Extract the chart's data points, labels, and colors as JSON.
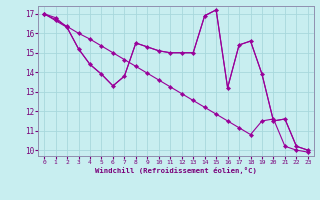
{
  "xlabel": "Windchill (Refroidissement éolien,°C)",
  "bg_color": "#c8eef0",
  "grid_color": "#a8d8dc",
  "line_color": "#990099",
  "xlim": [
    -0.5,
    23.5
  ],
  "ylim": [
    9.7,
    17.4
  ],
  "yticks": [
    10,
    11,
    12,
    13,
    14,
    15,
    16,
    17
  ],
  "xticks": [
    0,
    1,
    2,
    3,
    4,
    5,
    6,
    7,
    8,
    9,
    10,
    11,
    12,
    13,
    14,
    15,
    16,
    17,
    18,
    19,
    20,
    21,
    22,
    23
  ],
  "line1_x": [
    0,
    1,
    2,
    3,
    4,
    5,
    6,
    7,
    8,
    9,
    10,
    11,
    12,
    13,
    14,
    15,
    16,
    17,
    18,
    19,
    20,
    21,
    22,
    23
  ],
  "line1_y": [
    17.0,
    16.8,
    16.3,
    15.2,
    14.4,
    13.9,
    13.3,
    13.8,
    15.5,
    15.3,
    15.1,
    15.0,
    15.0,
    15.0,
    16.9,
    17.2,
    13.2,
    15.4,
    15.6,
    13.9,
    11.5,
    11.6,
    10.2,
    10.0
  ],
  "line2_x": [
    0,
    1,
    2,
    3,
    4,
    5,
    6,
    7,
    8,
    9,
    10,
    11,
    12,
    13,
    14,
    15,
    16,
    17,
    18,
    19,
    20,
    21,
    22,
    23
  ],
  "line2_y": [
    17.0,
    16.7,
    16.35,
    16.0,
    15.7,
    15.35,
    15.0,
    14.65,
    14.3,
    13.95,
    13.6,
    13.25,
    12.9,
    12.55,
    12.2,
    11.85,
    11.5,
    11.15,
    10.8,
    11.5,
    11.6,
    10.2,
    10.0,
    9.9
  ],
  "line3_x": [
    0,
    2,
    3,
    4,
    5,
    6,
    7,
    8,
    9,
    10,
    11,
    12,
    13,
    14,
    15,
    16,
    17,
    18,
    19,
    20,
    21,
    22,
    23
  ],
  "line3_y": [
    17.0,
    16.3,
    15.2,
    14.4,
    13.9,
    13.3,
    13.8,
    15.5,
    15.3,
    15.1,
    15.0,
    15.0,
    15.0,
    16.9,
    17.2,
    13.2,
    15.4,
    15.6,
    13.9,
    11.5,
    11.6,
    10.2,
    10.0
  ]
}
